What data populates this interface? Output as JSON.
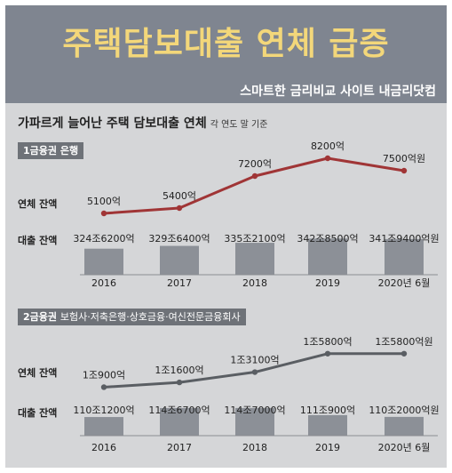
{
  "banner": {
    "title": "주택담보대출 연체 급증",
    "source": "스마트한 금리비교 사이트 내금리닷컴"
  },
  "heading": {
    "title": "가파르게 늘어난 주택 담보대출 연체",
    "note": "각 연도 말 기준"
  },
  "colors": {
    "banner_bg": "#7f8590",
    "banner_title": "#f3d77a",
    "panel_bg": "#d5d6d8",
    "bank_line": "#a03536",
    "nonbank_line": "#5a5e63",
    "bar": "#8c9097"
  },
  "chart_data": [
    {
      "type": "line",
      "section": "1금융권 은행",
      "section_detail": "",
      "delinquency_label": "연체 잔액",
      "loan_label": "대출 잔액",
      "categories": [
        "2016",
        "2017",
        "2018",
        "2019",
        "2020년 6월"
      ],
      "delinquency_values_억": [
        5100,
        5400,
        7200,
        8200,
        7500
      ],
      "delinquency_labels": [
        "5100억",
        "5400억",
        "7200억",
        "8200억",
        "7500억원"
      ],
      "loan_values_억": [
        3246200,
        3296400,
        3352100,
        3428500,
        3419400
      ],
      "loan_labels": [
        "324조6200억",
        "329조6400억",
        "335조2100억",
        "342조8500억",
        "341조9400억원"
      ]
    },
    {
      "type": "line",
      "section": "2금융권",
      "section_detail": "보험사·저축은행·상호금융·여신전문금융회사",
      "delinquency_label": "연체 잔액",
      "loan_label": "대출 잔액",
      "categories": [
        "2016",
        "2017",
        "2018",
        "2019",
        "2020년 6월"
      ],
      "delinquency_values_억": [
        10900,
        11600,
        13100,
        15800,
        15800
      ],
      "delinquency_labels": [
        "1조900억",
        "1조1600억",
        "1조3100억",
        "1조5800억",
        "1조5800억원"
      ],
      "loan_values_억": [
        1101200,
        1146700,
        1147000,
        1110900,
        1102000
      ],
      "loan_labels": [
        "110조1200억",
        "114조6700억",
        "114조7000억",
        "111조900억",
        "110조2000억원"
      ]
    }
  ]
}
